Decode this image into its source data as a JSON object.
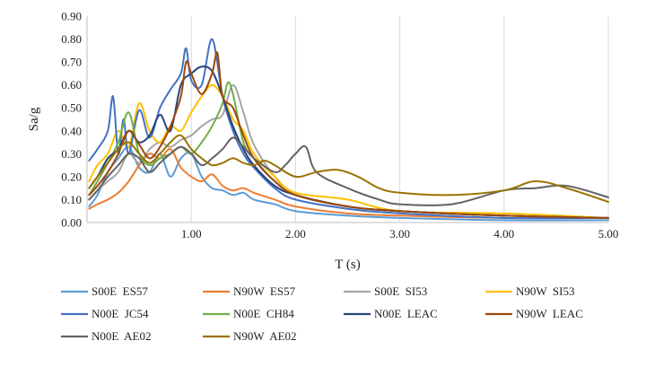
{
  "chart_data": {
    "type": "line",
    "xlabel": "T (s)",
    "ylabel": "Sa/g",
    "xlim": [
      0,
      5
    ],
    "ylim": [
      0,
      0.9
    ],
    "xticks": [
      "1.00",
      "2.00",
      "3.00",
      "4.00",
      "5.00"
    ],
    "yticks": [
      "0.00",
      "0.10",
      "0.20",
      "0.30",
      "0.40",
      "0.50",
      "0.60",
      "0.70",
      "0.80",
      "0.90"
    ],
    "grid": "vertical",
    "legend_position": "bottom",
    "series": [
      {
        "name": "S00E  ES57",
        "color": "#5B9BD5",
        "x": [
          0.02,
          0.1,
          0.2,
          0.3,
          0.4,
          0.5,
          0.6,
          0.7,
          0.8,
          0.9,
          1.0,
          1.1,
          1.2,
          1.3,
          1.4,
          1.5,
          1.6,
          1.8,
          2.0,
          2.5,
          3.0,
          4.0,
          5.0
        ],
        "y": [
          0.07,
          0.12,
          0.22,
          0.28,
          0.33,
          0.24,
          0.22,
          0.3,
          0.2,
          0.28,
          0.3,
          0.2,
          0.15,
          0.14,
          0.12,
          0.13,
          0.1,
          0.08,
          0.05,
          0.03,
          0.02,
          0.01,
          0.01
        ]
      },
      {
        "name": "N90W  ES57",
        "color": "#ED7D31",
        "x": [
          0.02,
          0.1,
          0.2,
          0.3,
          0.4,
          0.5,
          0.6,
          0.7,
          0.8,
          0.9,
          1.0,
          1.1,
          1.2,
          1.3,
          1.4,
          1.5,
          1.6,
          1.8,
          2.0,
          2.5,
          3.0,
          4.0,
          5.0
        ],
        "y": [
          0.06,
          0.08,
          0.1,
          0.13,
          0.18,
          0.25,
          0.3,
          0.28,
          0.32,
          0.24,
          0.2,
          0.18,
          0.21,
          0.16,
          0.14,
          0.15,
          0.13,
          0.1,
          0.07,
          0.04,
          0.03,
          0.02,
          0.02
        ]
      },
      {
        "name": "S00E  SI53",
        "color": "#A5A5A5",
        "x": [
          0.02,
          0.1,
          0.2,
          0.3,
          0.4,
          0.5,
          0.6,
          0.7,
          0.8,
          0.9,
          1.0,
          1.1,
          1.2,
          1.3,
          1.4,
          1.5,
          1.6,
          1.8,
          2.0,
          2.5,
          3.0,
          4.0,
          5.0
        ],
        "y": [
          0.1,
          0.14,
          0.18,
          0.22,
          0.3,
          0.26,
          0.32,
          0.35,
          0.33,
          0.36,
          0.38,
          0.42,
          0.45,
          0.47,
          0.6,
          0.48,
          0.34,
          0.2,
          0.12,
          0.07,
          0.05,
          0.03,
          0.02
        ]
      },
      {
        "name": "N90W  SI53",
        "color": "#FFC000",
        "x": [
          0.02,
          0.1,
          0.2,
          0.3,
          0.4,
          0.5,
          0.6,
          0.7,
          0.8,
          0.9,
          1.0,
          1.1,
          1.2,
          1.3,
          1.4,
          1.5,
          1.6,
          1.8,
          2.0,
          2.5,
          3.0,
          4.0,
          5.0
        ],
        "y": [
          0.18,
          0.25,
          0.3,
          0.4,
          0.33,
          0.52,
          0.4,
          0.35,
          0.42,
          0.4,
          0.48,
          0.55,
          0.6,
          0.55,
          0.45,
          0.4,
          0.3,
          0.2,
          0.13,
          0.1,
          0.05,
          0.04,
          0.02
        ]
      },
      {
        "name": "N00E  JC54",
        "color": "#4472C4",
        "x": [
          0.02,
          0.1,
          0.2,
          0.25,
          0.3,
          0.35,
          0.4,
          0.5,
          0.6,
          0.7,
          0.8,
          0.9,
          0.95,
          1.0,
          1.1,
          1.2,
          1.3,
          1.4,
          1.5,
          1.6,
          1.8,
          2.0,
          2.5,
          3.0,
          4.0,
          5.0
        ],
        "y": [
          0.27,
          0.32,
          0.4,
          0.55,
          0.3,
          0.45,
          0.3,
          0.49,
          0.37,
          0.5,
          0.58,
          0.65,
          0.76,
          0.62,
          0.6,
          0.8,
          0.55,
          0.4,
          0.3,
          0.24,
          0.15,
          0.1,
          0.06,
          0.04,
          0.02,
          0.02
        ]
      },
      {
        "name": "N00E  CH84",
        "color": "#70AD47",
        "x": [
          0.02,
          0.1,
          0.2,
          0.3,
          0.4,
          0.5,
          0.6,
          0.7,
          0.8,
          0.9,
          1.0,
          1.1,
          1.2,
          1.3,
          1.35,
          1.4,
          1.5,
          1.6,
          1.8,
          2.0,
          2.5,
          3.0,
          4.0,
          5.0
        ],
        "y": [
          0.12,
          0.18,
          0.26,
          0.35,
          0.48,
          0.3,
          0.25,
          0.28,
          0.3,
          0.33,
          0.3,
          0.35,
          0.42,
          0.52,
          0.61,
          0.56,
          0.35,
          0.28,
          0.18,
          0.12,
          0.07,
          0.05,
          0.03,
          0.02
        ]
      },
      {
        "name": "N00E  LEAC",
        "color": "#264478",
        "x": [
          0.02,
          0.1,
          0.2,
          0.3,
          0.4,
          0.5,
          0.6,
          0.7,
          0.8,
          0.9,
          1.0,
          1.1,
          1.2,
          1.3,
          1.4,
          1.5,
          1.6,
          1.8,
          2.0,
          2.5,
          3.0,
          4.0,
          5.0
        ],
        "y": [
          0.15,
          0.2,
          0.28,
          0.32,
          0.4,
          0.35,
          0.38,
          0.47,
          0.4,
          0.6,
          0.65,
          0.68,
          0.66,
          0.55,
          0.42,
          0.32,
          0.25,
          0.16,
          0.12,
          0.07,
          0.05,
          0.03,
          0.02
        ]
      },
      {
        "name": "N90W  LEAC",
        "color": "#9E480E",
        "x": [
          0.02,
          0.1,
          0.2,
          0.3,
          0.4,
          0.5,
          0.6,
          0.7,
          0.8,
          0.9,
          0.95,
          1.0,
          1.1,
          1.2,
          1.25,
          1.3,
          1.4,
          1.5,
          1.6,
          1.8,
          2.0,
          2.5,
          3.0,
          4.0,
          5.0
        ],
        "y": [
          0.12,
          0.16,
          0.22,
          0.3,
          0.4,
          0.34,
          0.28,
          0.33,
          0.42,
          0.55,
          0.7,
          0.65,
          0.56,
          0.65,
          0.74,
          0.55,
          0.5,
          0.38,
          0.28,
          0.18,
          0.12,
          0.07,
          0.05,
          0.03,
          0.02
        ]
      },
      {
        "name": "N00E  AE02",
        "color": "#636363",
        "x": [
          0.02,
          0.1,
          0.2,
          0.3,
          0.4,
          0.5,
          0.6,
          0.7,
          0.8,
          0.9,
          1.0,
          1.1,
          1.2,
          1.3,
          1.4,
          1.5,
          1.6,
          1.8,
          1.9,
          2.0,
          2.1,
          2.2,
          2.5,
          2.8,
          3.0,
          3.5,
          4.0,
          4.3,
          4.6,
          5.0
        ],
        "y": [
          0.1,
          0.14,
          0.2,
          0.25,
          0.3,
          0.28,
          0.22,
          0.26,
          0.3,
          0.33,
          0.3,
          0.25,
          0.28,
          0.32,
          0.37,
          0.33,
          0.28,
          0.22,
          0.25,
          0.3,
          0.33,
          0.22,
          0.15,
          0.1,
          0.08,
          0.08,
          0.14,
          0.15,
          0.16,
          0.11
        ]
      },
      {
        "name": "N90W  AE02",
        "color": "#997300",
        "x": [
          0.02,
          0.1,
          0.2,
          0.3,
          0.4,
          0.5,
          0.6,
          0.7,
          0.8,
          0.9,
          1.0,
          1.1,
          1.2,
          1.3,
          1.4,
          1.5,
          1.6,
          1.7,
          1.8,
          2.0,
          2.2,
          2.4,
          2.6,
          2.8,
          3.0,
          3.5,
          4.0,
          4.3,
          4.6,
          5.0
        ],
        "y": [
          0.15,
          0.2,
          0.26,
          0.32,
          0.35,
          0.3,
          0.26,
          0.3,
          0.35,
          0.38,
          0.32,
          0.28,
          0.25,
          0.26,
          0.28,
          0.26,
          0.25,
          0.27,
          0.25,
          0.2,
          0.22,
          0.23,
          0.2,
          0.15,
          0.13,
          0.12,
          0.14,
          0.18,
          0.15,
          0.09
        ]
      }
    ]
  }
}
